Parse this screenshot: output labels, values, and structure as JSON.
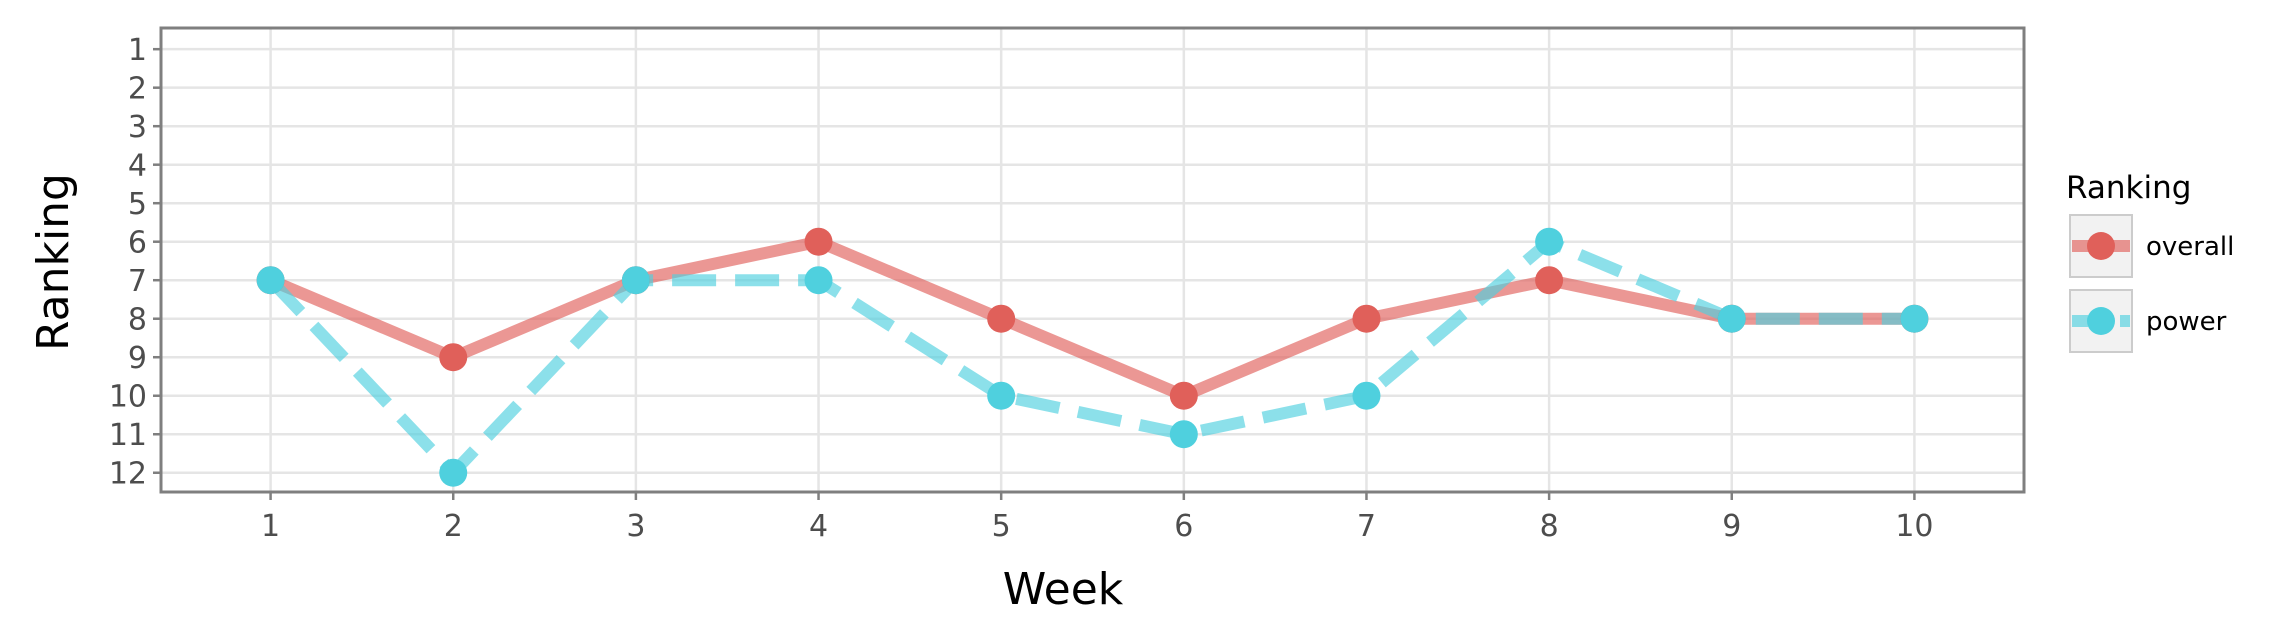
{
  "chart_data": {
    "type": "line",
    "title": "",
    "xlabel": "Week",
    "ylabel": "Ranking",
    "x": [
      1,
      2,
      3,
      4,
      5,
      6,
      7,
      8,
      9,
      10
    ],
    "x_ticks": [
      "1",
      "2",
      "3",
      "4",
      "5",
      "6",
      "7",
      "8",
      "9",
      "10"
    ],
    "y_ticks": [
      "1",
      "2",
      "3",
      "4",
      "5",
      "6",
      "7",
      "8",
      "9",
      "10",
      "11",
      "12"
    ],
    "xlim": [
      0.4,
      10.6
    ],
    "ylim": [
      12.5,
      0.45
    ],
    "y_reversed": true,
    "grid": true,
    "legend": {
      "title": "Ranking",
      "position": "right"
    },
    "series": [
      {
        "name": "overall",
        "color": "#e0605a",
        "line_style": "solid",
        "values": [
          7,
          9,
          7,
          6,
          8,
          10,
          8,
          7,
          8,
          8
        ]
      },
      {
        "name": "power",
        "color": "#4fd0de",
        "line_style": "dashed",
        "values": [
          7,
          12,
          7,
          7,
          10,
          11,
          10,
          6,
          8,
          8
        ]
      }
    ]
  }
}
